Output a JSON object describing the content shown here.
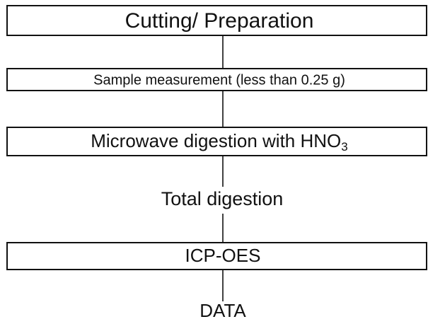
{
  "nodes": [
    {
      "label": "Cutting/ Preparation"
    },
    {
      "label": "Sample measurement (less than 0.25 g)"
    },
    {
      "label": "Microwave digestion with HNO",
      "subscript": "3"
    },
    {
      "label": "Total digestion"
    },
    {
      "label": "ICP-OES"
    },
    {
      "label": "DATA"
    }
  ]
}
